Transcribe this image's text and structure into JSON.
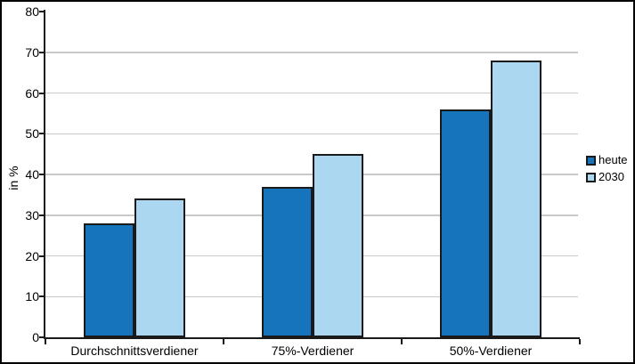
{
  "chart_data": {
    "type": "bar",
    "title": "",
    "xlabel": "",
    "ylabel": "in %",
    "ylim": [
      0,
      80
    ],
    "ytick_step": 10,
    "y_tick_labels": [
      "0",
      "10",
      "20",
      "30",
      "40",
      "50",
      "60",
      "70",
      "80"
    ],
    "grid": true,
    "legend_position": "right",
    "categories": [
      "Durchschnittsverdiener",
      "75%-Verdiener",
      "50%-Verdiener"
    ],
    "series": [
      {
        "name": "heute",
        "color": "#1574bc",
        "values": [
          28,
          37,
          56
        ]
      },
      {
        "name": "2030",
        "color": "#abd7f0",
        "values": [
          34,
          45,
          68
        ]
      }
    ]
  },
  "colors": {
    "axis": "#1a1a1a",
    "gridline": "#c9c9c9",
    "background": "#ffffff",
    "frame_border": "#000000"
  }
}
